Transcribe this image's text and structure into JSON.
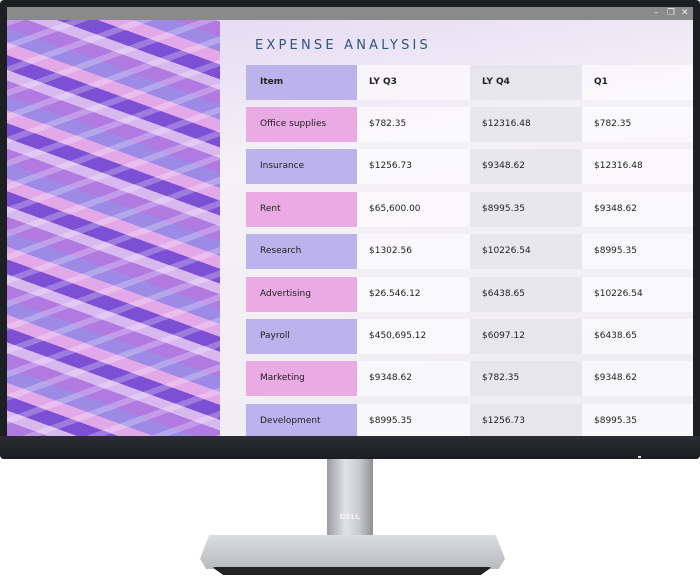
{
  "window": {
    "minimize": "–",
    "restore": "❐",
    "close": "✕"
  },
  "title": "EXPENSE ANALYSIS",
  "table": {
    "headers": [
      "Item",
      "LY Q3",
      "LY Q4",
      "Q1"
    ],
    "rows": [
      [
        "Office supplies",
        "$782.35",
        "$12316.48",
        "$782.35"
      ],
      [
        "Insurance",
        "$1256.73",
        "$9348.62",
        "$12316.48"
      ],
      [
        "Rent",
        "$65,600.00",
        "$8995.35",
        "$9348.62"
      ],
      [
        "Research",
        "$1302.56",
        "$10226.54",
        "$8995.35"
      ],
      [
        "Advertising",
        "$26.546.12",
        "$6438.65",
        "$10226.54"
      ],
      [
        "Payroll",
        "$450,695.12",
        "$6097.12",
        "$6438.65"
      ],
      [
        "Marketing",
        "$9348.62",
        "$782.35",
        "$9348.62"
      ],
      [
        "Development",
        "$8995.35",
        "$1256.73",
        "$8995.35"
      ]
    ]
  },
  "brand": "DELL",
  "colors": {
    "item_purple": "#bcb2ec",
    "item_pink": "#eaaae4",
    "title": "#2c5580"
  }
}
